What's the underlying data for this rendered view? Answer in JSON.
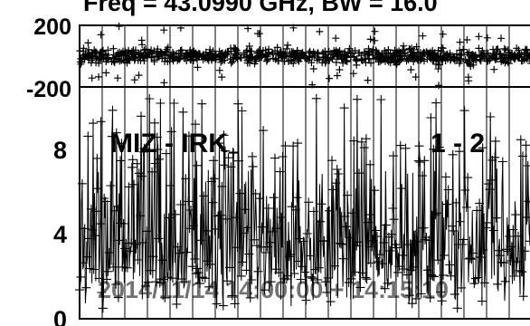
{
  "title": "Freq = 43.0990 GHz, BW = 16.0",
  "chart_data": [
    {
      "type": "scatter",
      "panel": "phase",
      "ylim": [
        -200,
        200
      ],
      "y_tick_labels": [
        "200",
        "-200"
      ],
      "y_ticks": [
        200,
        -200
      ],
      "grid": true,
      "marker": "plus",
      "band_center": 0,
      "band_spread": 45,
      "outlier_fraction": 0.08
    },
    {
      "type": "scatter",
      "panel": "amplitude",
      "ylim": [
        0,
        10
      ],
      "y_tick_labels": [
        "8",
        "4",
        "0"
      ],
      "y_ticks": [
        8,
        4,
        0
      ],
      "grid": true,
      "marker": "plus",
      "baseline": 1.5,
      "typical_peak": 6.5,
      "max_value": 9.5,
      "annotations": {
        "baseline_name": "MIZ - IRK",
        "baseline_channels": "1 - 2"
      },
      "bottom_text": "2014/11/14 14:00:00 + 14:15:10"
    }
  ]
}
